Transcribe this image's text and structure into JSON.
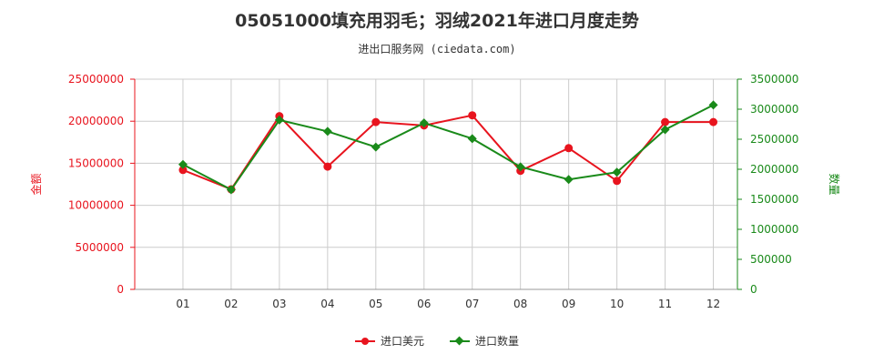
{
  "header": {
    "title": "05051000填充用羽毛；羽绒2021年进口月度走势",
    "subtitle": "进出口服务网 (ciedata.com)"
  },
  "colors": {
    "amount": "#e8141e",
    "quantity": "#1a8a1a",
    "grid": "#cccccc"
  },
  "chart_data": {
    "type": "line",
    "categories": [
      "01",
      "02",
      "03",
      "04",
      "05",
      "06",
      "07",
      "08",
      "09",
      "10",
      "11",
      "12"
    ],
    "ylabel_left": "金额",
    "ylabel_right": "数量",
    "ylim_left": [
      0,
      25000000
    ],
    "ylim_right": [
      0,
      3500000
    ],
    "yticks_left": [
      "0",
      "5000000",
      "10000000",
      "15000000",
      "20000000",
      "25000000"
    ],
    "yticks_right": [
      "0",
      "500000",
      "1000000",
      "1500000",
      "2000000",
      "2500000",
      "3000000",
      "3500000"
    ],
    "grid": true,
    "legend_position": "bottom",
    "series": [
      {
        "name": "进口美元",
        "axis": "left",
        "marker": "circle",
        "values": [
          14200000,
          11900000,
          20600000,
          14600000,
          19900000,
          19500000,
          20700000,
          14100000,
          16800000,
          12900000,
          19900000,
          19900000
        ]
      },
      {
        "name": "进口数量",
        "axis": "right",
        "marker": "diamond",
        "values": [
          2080000,
          1660000,
          2820000,
          2630000,
          2370000,
          2770000,
          2510000,
          2040000,
          1830000,
          1950000,
          2660000,
          3070000
        ]
      }
    ]
  }
}
